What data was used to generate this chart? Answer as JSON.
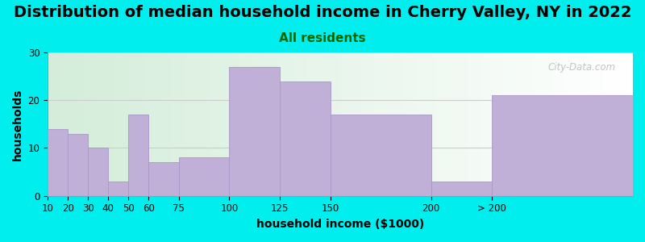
{
  "title": "Distribution of median household income in Cherry Valley, NY in 2022",
  "subtitle": "All residents",
  "xlabel": "household income ($1000)",
  "ylabel": "households",
  "bg_color": "#00EEEE",
  "bar_color": "#c0b0d8",
  "bar_edge_color": "#a898c8",
  "values": [
    14,
    13,
    10,
    3,
    17,
    7,
    8,
    27,
    24,
    17,
    3,
    21
  ],
  "left_edges": [
    10,
    20,
    30,
    40,
    50,
    60,
    75,
    100,
    125,
    150,
    200,
    230
  ],
  "widths": [
    10,
    10,
    10,
    10,
    10,
    15,
    25,
    25,
    25,
    50,
    30,
    70
  ],
  "xtick_pos": [
    10,
    20,
    30,
    40,
    50,
    60,
    75,
    100,
    125,
    150,
    200,
    230
  ],
  "xtick_labels": [
    "10",
    "20",
    "30",
    "40",
    "50",
    "60",
    "75",
    "100",
    "125",
    "150",
    "200",
    "> 200"
  ],
  "xlim": [
    10,
    300
  ],
  "ylim": [
    0,
    30
  ],
  "yticks": [
    0,
    10,
    20,
    30
  ],
  "title_fontsize": 14,
  "subtitle_fontsize": 11,
  "subtitle_color": "#006600",
  "axis_label_fontsize": 10,
  "tick_fontsize": 8.5,
  "watermark_text": "City-Data.com"
}
